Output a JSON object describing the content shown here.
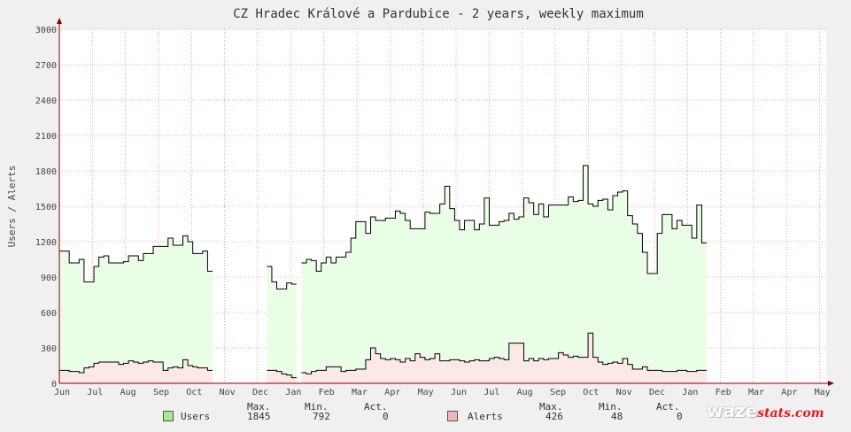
{
  "chart_data": {
    "type": "area",
    "title": "CZ Hradec Králové a Pardubice - 2 years, weekly maximum",
    "ylabel": "Users / Alerts",
    "xlabel": "",
    "ylim": [
      0,
      3000
    ],
    "yticks": [
      0,
      300,
      600,
      900,
      1200,
      1500,
      1800,
      2100,
      2400,
      2700,
      3000
    ],
    "x_tick_labels": [
      "Jun",
      "Jul",
      "Aug",
      "Sep",
      "Oct",
      "Nov",
      "Dec",
      "Jan",
      "Feb",
      "Mar",
      "Apr",
      "May",
      "Jun",
      "Jul",
      "Aug",
      "Sep",
      "Oct",
      "Nov",
      "Dec",
      "Jan",
      "Feb",
      "Mar",
      "Apr",
      "May"
    ],
    "grid": true,
    "series": [
      {
        "name": "Users",
        "color": "#000000",
        "fill": "#eafde6",
        "values": [
          1120,
          1120,
          1020,
          1020,
          1050,
          860,
          860,
          990,
          1070,
          1080,
          1020,
          1020,
          1020,
          1030,
          1080,
          1080,
          1040,
          1100,
          1100,
          1160,
          1160,
          1160,
          1230,
          1170,
          1170,
          1250,
          1200,
          1100,
          1100,
          1120,
          950,
          null,
          null,
          null,
          null,
          null,
          null,
          null,
          null,
          null,
          null,
          null,
          990,
          860,
          800,
          800,
          850,
          840,
          null,
          1020,
          1050,
          1040,
          950,
          1020,
          1070,
          1020,
          1070,
          1070,
          1110,
          1230,
          1370,
          1370,
          1270,
          1410,
          1380,
          1380,
          1400,
          1400,
          1460,
          1440,
          1380,
          1310,
          1310,
          1310,
          1450,
          1440,
          1440,
          1520,
          1670,
          1480,
          1380,
          1300,
          1380,
          1380,
          1300,
          1350,
          1570,
          1340,
          1340,
          1370,
          1380,
          1440,
          1390,
          1410,
          1570,
          1530,
          1430,
          1520,
          1410,
          1510,
          1510,
          1510,
          1510,
          1580,
          1540,
          1550,
          1845,
          1520,
          1500,
          1550,
          1560,
          1470,
          1590,
          1620,
          1630,
          1420,
          1350,
          1270,
          1110,
          930,
          930,
          1270,
          1430,
          1430,
          1310,
          1380,
          1340,
          1340,
          1230,
          1510,
          1190
        ],
        "max": "1845",
        "min": "792",
        "act": "0"
      },
      {
        "name": "Alerts",
        "color": "#000000",
        "fill": "#fde8e8",
        "values": [
          110,
          110,
          100,
          100,
          90,
          130,
          140,
          170,
          180,
          180,
          180,
          180,
          160,
          170,
          190,
          180,
          170,
          180,
          190,
          180,
          180,
          110,
          130,
          140,
          130,
          200,
          150,
          140,
          130,
          130,
          110,
          null,
          null,
          null,
          null,
          null,
          null,
          null,
          null,
          null,
          null,
          null,
          110,
          110,
          100,
          80,
          70,
          48,
          null,
          90,
          80,
          100,
          110,
          110,
          140,
          140,
          140,
          100,
          110,
          110,
          120,
          120,
          200,
          300,
          250,
          210,
          200,
          210,
          200,
          180,
          210,
          190,
          250,
          220,
          200,
          210,
          250,
          190,
          190,
          200,
          200,
          190,
          180,
          190,
          200,
          190,
          190,
          210,
          220,
          210,
          200,
          340,
          340,
          340,
          190,
          210,
          190,
          210,
          200,
          210,
          210,
          260,
          240,
          220,
          230,
          220,
          220,
          426,
          220,
          180,
          160,
          170,
          180,
          170,
          210,
          160,
          120,
          120,
          140,
          110,
          110,
          110,
          100,
          100,
          100,
          110,
          110,
          100,
          100,
          110,
          110
        ],
        "max": "426",
        "min": "48",
        "act": "0"
      }
    ]
  },
  "legend": {
    "users_label": "Users",
    "alerts_label": "Alerts",
    "hdr_max": "Max.",
    "hdr_min": "Min.",
    "hdr_act": "Act.",
    "users_color": "#a8e892",
    "alerts_color": "#f2b8b8"
  },
  "logo": {
    "waze": "waze",
    "stats": "stats.com"
  }
}
